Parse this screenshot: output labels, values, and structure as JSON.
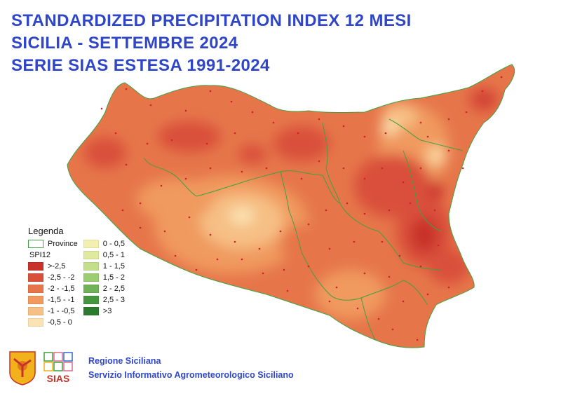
{
  "title": {
    "line1": "STANDARDIZED PRECIPITATION INDEX 12 MESI",
    "line2": "SICILIA - SETTEMBRE 2024",
    "line3": "SERIE SIAS ESTESA 1991-2024"
  },
  "legend": {
    "title": "Legenda",
    "province_label": "Province",
    "spi_label": "SPI12",
    "classes_dry": [
      {
        "label": ">-2,5",
        "color": "#c8322a"
      },
      {
        "label": "-2,5 - -2",
        "color": "#d9503a"
      },
      {
        "label": "-2 - -1,5",
        "color": "#e6764a"
      },
      {
        "label": "-1,5 - -1",
        "color": "#f09a5e"
      },
      {
        "label": "-1 - -0,5",
        "color": "#f6bf84"
      },
      {
        "label": "-0,5 - 0",
        "color": "#fbe3b3"
      }
    ],
    "classes_wet": [
      {
        "label": "0 - 0,5",
        "color": "#f3efb0"
      },
      {
        "label": "0,5 - 1",
        "color": "#dfeaa0"
      },
      {
        "label": "1 - 1,5",
        "color": "#c3df8c"
      },
      {
        "label": "1,5 - 2",
        "color": "#9ccd72"
      },
      {
        "label": "2 - 2,5",
        "color": "#6fb257"
      },
      {
        "label": "2,5 - 3",
        "color": "#46963f"
      },
      {
        "label": ">3",
        "color": "#2b7a2e"
      }
    ]
  },
  "footer": {
    "line1": "Regione Siciliana",
    "line2": "Servizio Informativo Agrometeorologico Siciliano",
    "logo_text": "SIAS"
  },
  "colors": {
    "title": "#2f46c8",
    "province_border": "#3fa13f",
    "station_dot": "#d0202a"
  }
}
